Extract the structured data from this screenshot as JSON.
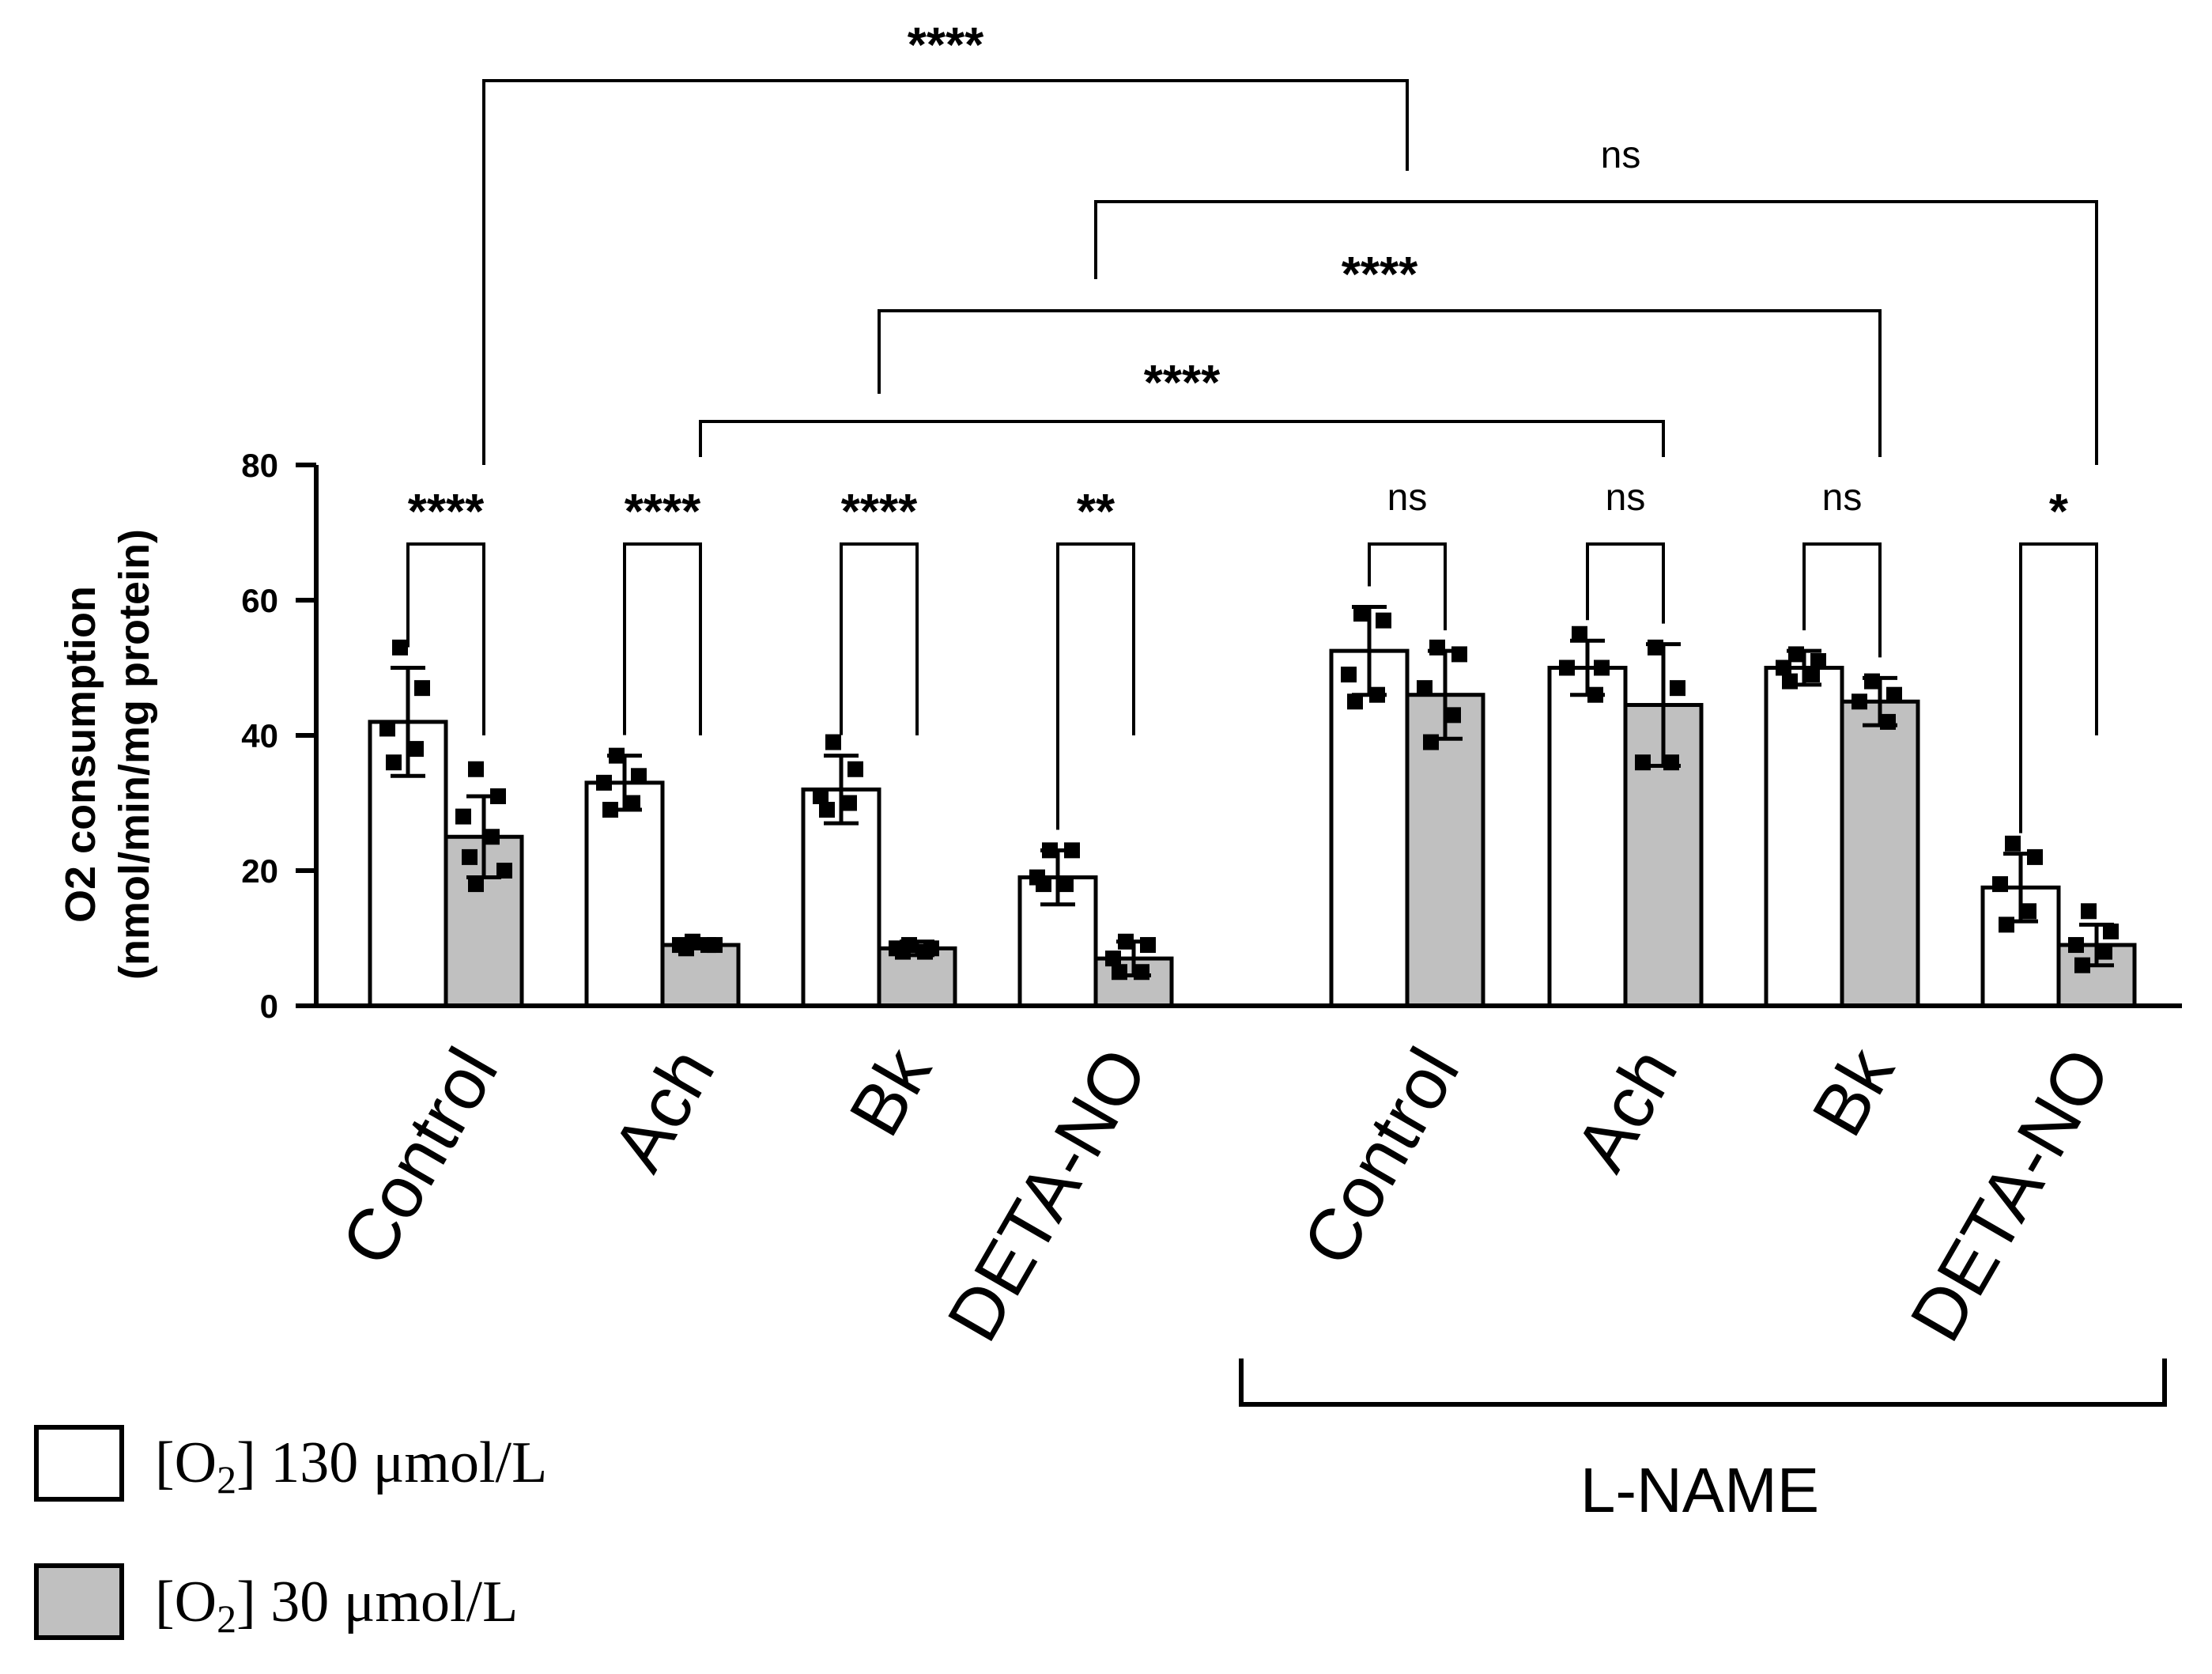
{
  "chart_data": {
    "type": "bar",
    "ylabel_line1": "O2 consumption",
    "ylabel_line2": "(nmol/min/mg protein)",
    "ylim": [
      0,
      80
    ],
    "yticks": [
      "0",
      "20",
      "40",
      "60",
      "80"
    ],
    "categories": [
      "Control",
      "Ach",
      "Bk",
      "DETA-NO",
      "Control",
      "Ach",
      "Bk",
      "DETA-NO"
    ],
    "group_bracket_label": "L-NAME",
    "colors": {
      "high_o2": "#ffffff",
      "low_o2": "#c0c0c0",
      "stroke": "#000000"
    },
    "series": [
      {
        "name_prefix": "[O",
        "name_sub": "2",
        "name_suffix": "] 130 μmol/L",
        "values": [
          42,
          33,
          32,
          19,
          52.5,
          50,
          50,
          17.5
        ],
        "sd": [
          8,
          4,
          5,
          4,
          6.5,
          4,
          2.5,
          5
        ],
        "points": [
          [
            53,
            47,
            41,
            38,
            36
          ],
          [
            37,
            34,
            33,
            30,
            29
          ],
          [
            39,
            35,
            31,
            30,
            29
          ],
          [
            23,
            23,
            19,
            18,
            18
          ],
          [
            58,
            57,
            49,
            46,
            45
          ],
          [
            55,
            50,
            50,
            46
          ],
          [
            52,
            51,
            50,
            49,
            48
          ],
          [
            24,
            22,
            18,
            14,
            12
          ]
        ]
      },
      {
        "name_prefix": "[O",
        "name_sub": "2",
        "name_suffix": "] 30 μmol/L",
        "values": [
          25,
          9,
          8.5,
          7,
          46,
          44.5,
          45,
          9
        ],
        "sd": [
          6,
          0.5,
          1,
          2.5,
          6.5,
          9,
          3.5,
          3
        ],
        "points": [
          [
            35,
            31,
            28,
            25,
            22,
            20,
            18
          ],
          [
            9.5,
            9,
            9,
            9,
            8.5
          ],
          [
            9,
            8.5,
            8.5,
            8,
            8
          ],
          [
            9.5,
            9,
            7,
            5,
            5
          ],
          [
            53,
            52,
            47,
            43,
            39
          ],
          [
            53,
            47,
            36,
            36
          ],
          [
            48,
            46,
            45,
            42
          ],
          [
            14,
            11,
            9,
            8,
            6
          ]
        ]
      }
    ],
    "pair_comparisons": [
      "****",
      "****",
      "****",
      "**",
      "ns",
      "ns",
      "ns",
      "*"
    ],
    "cross_comparisons": [
      {
        "label": "****",
        "from_category": 0,
        "to_category": 4
      },
      {
        "label": "ns",
        "from_category": 3,
        "to_category": 7
      },
      {
        "label": "****",
        "from_category": 2,
        "to_category": 6
      },
      {
        "label": "****",
        "from_category": 1,
        "to_category": 5
      }
    ]
  }
}
